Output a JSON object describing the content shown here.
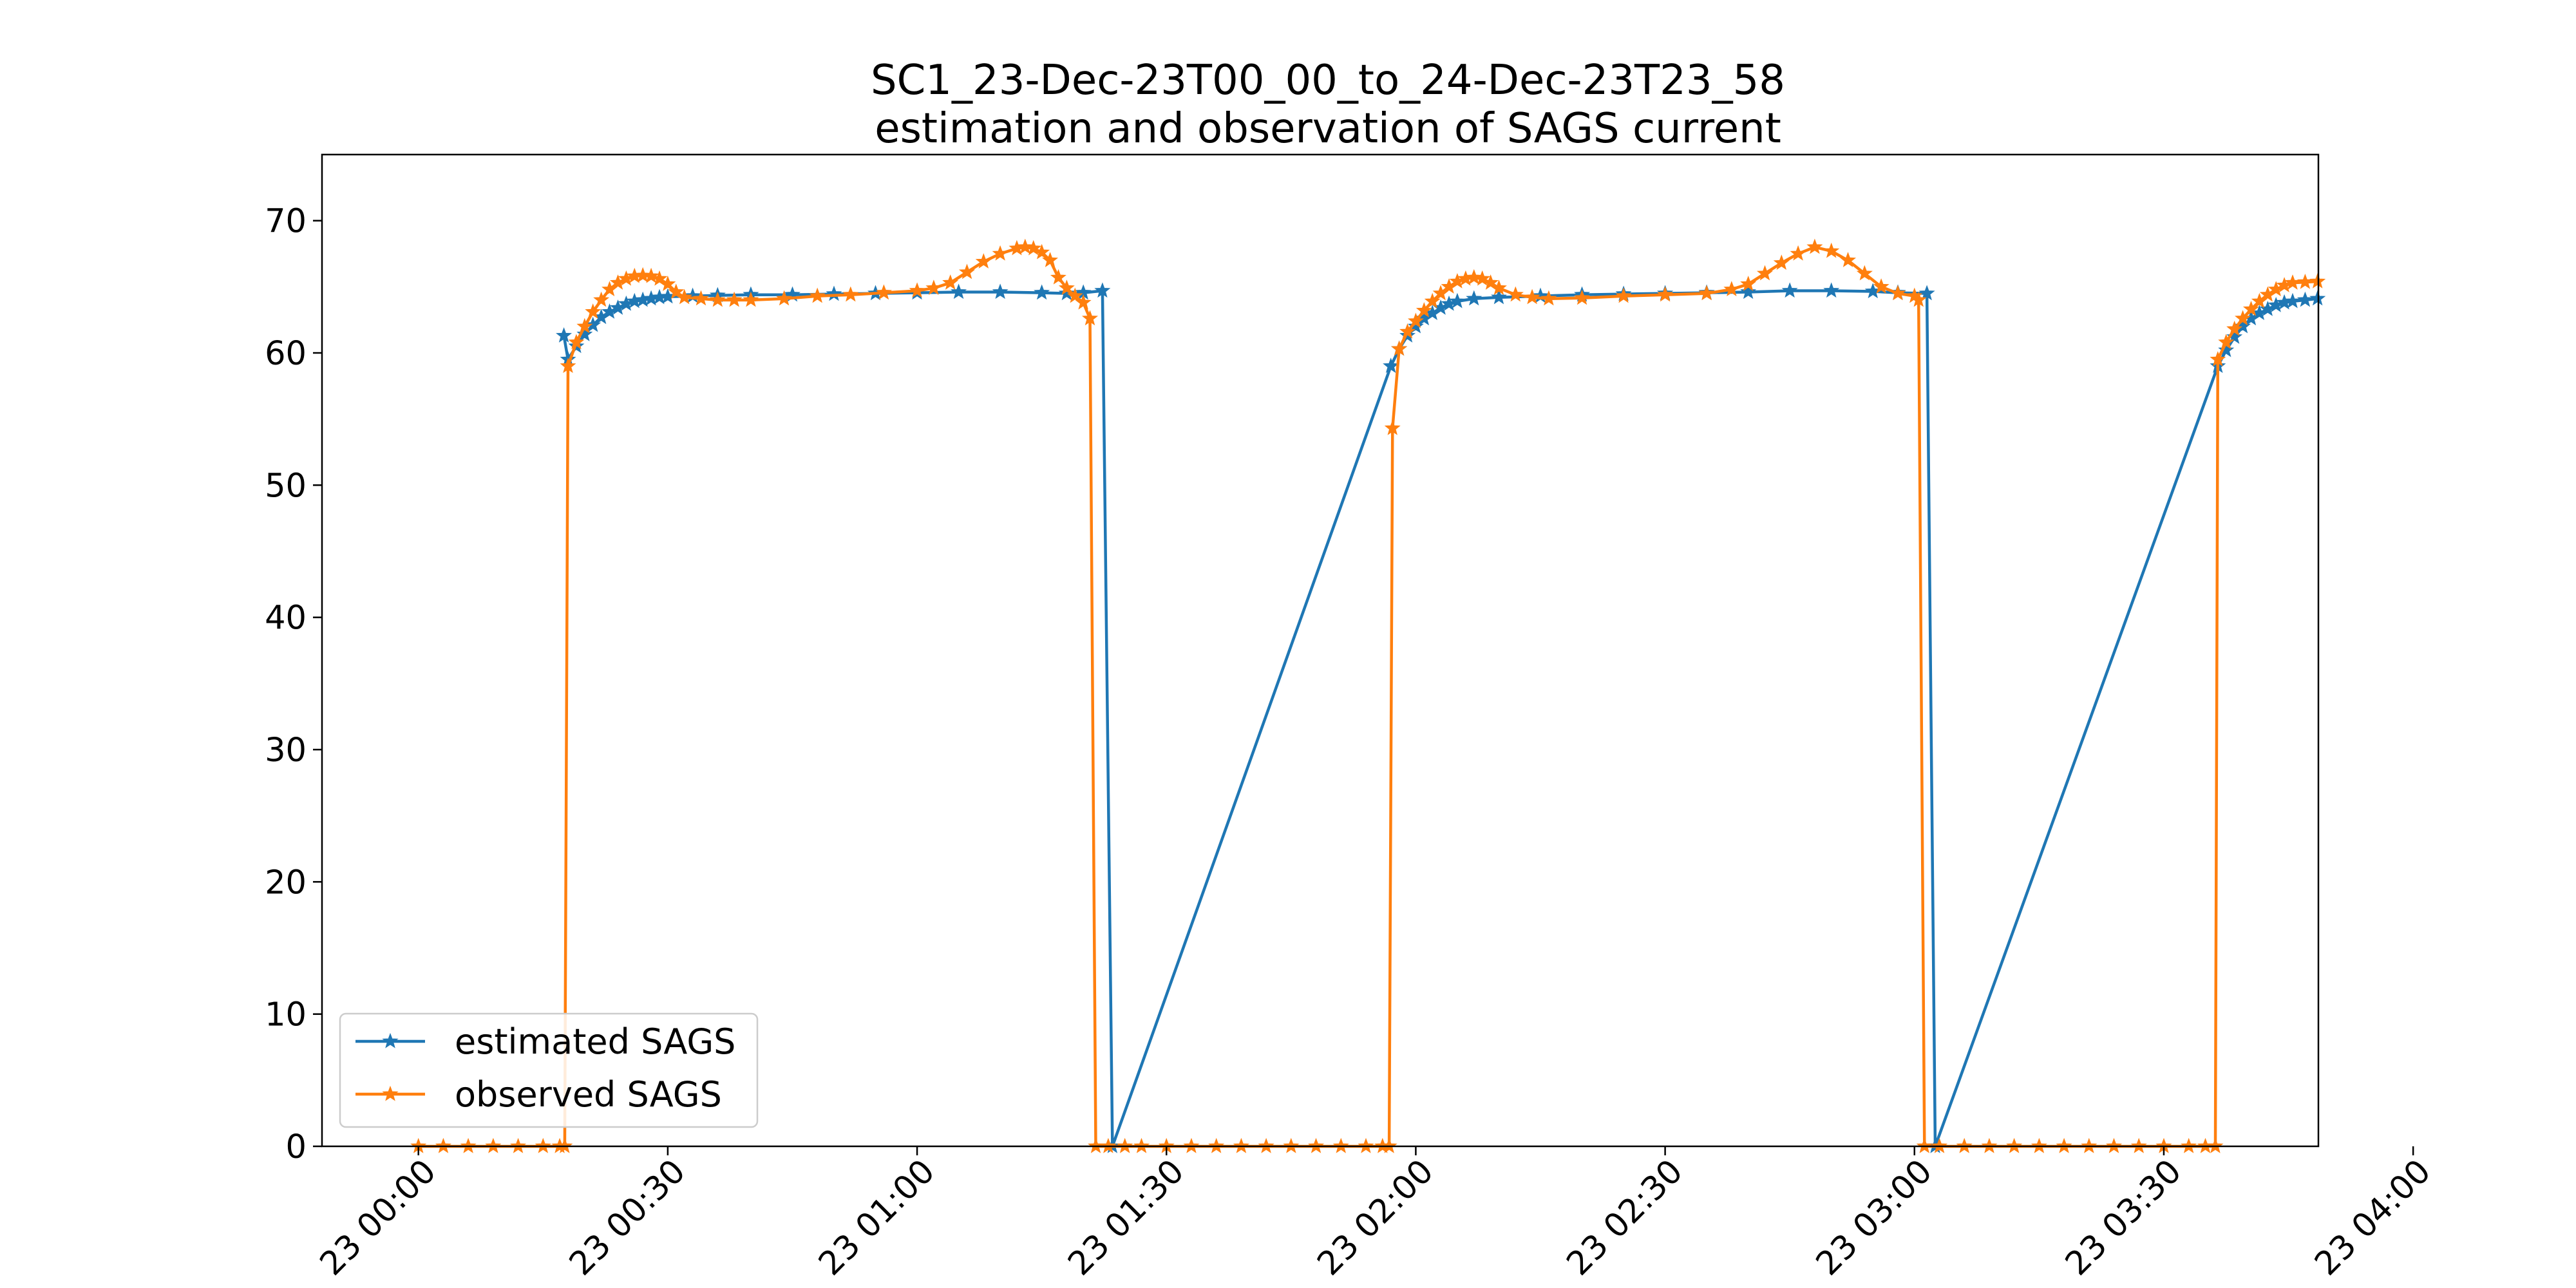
{
  "chart_data": {
    "type": "line",
    "title": "SC1_23-Dec-23T00_00_to_24-Dec-23T23_58",
    "subtitle": "estimation and observation of SAGS current",
    "xlabel": "",
    "ylabel": "",
    "x_unit": "minutes after 23 00:00",
    "xlim": [
      -11.6,
      228.6
    ],
    "ylim": [
      0,
      75
    ],
    "x_ticks": [
      {
        "value": 0,
        "label": "23 00:00"
      },
      {
        "value": 30,
        "label": "23 00:30"
      },
      {
        "value": 60,
        "label": "23 01:00"
      },
      {
        "value": 90,
        "label": "23 01:30"
      },
      {
        "value": 120,
        "label": "23 02:00"
      },
      {
        "value": 150,
        "label": "23 02:30"
      },
      {
        "value": 180,
        "label": "23 03:00"
      },
      {
        "value": 210,
        "label": "23 03:30"
      },
      {
        "value": 240,
        "label": "23 04:00"
      }
    ],
    "y_ticks": [
      0,
      10,
      20,
      30,
      40,
      50,
      60,
      70
    ],
    "grid": false,
    "legend_position": "lower-left",
    "series": [
      {
        "name": "estimated SAGS",
        "color": "#1f77b4",
        "marker": "star",
        "points": [
          [
            17.5,
            61.3
          ],
          [
            18,
            59.5
          ],
          [
            19,
            60.5
          ],
          [
            20,
            61.4
          ],
          [
            21,
            62.1
          ],
          [
            22,
            62.7
          ],
          [
            23,
            63.1
          ],
          [
            24,
            63.4
          ],
          [
            25,
            63.7
          ],
          [
            26,
            63.9
          ],
          [
            27,
            64.0
          ],
          [
            28,
            64.1
          ],
          [
            29,
            64.2
          ],
          [
            30,
            64.25
          ],
          [
            33,
            64.3
          ],
          [
            36,
            64.35
          ],
          [
            40,
            64.4
          ],
          [
            45,
            64.4
          ],
          [
            50,
            64.45
          ],
          [
            55,
            64.5
          ],
          [
            60,
            64.55
          ],
          [
            65,
            64.6
          ],
          [
            70,
            64.6
          ],
          [
            75,
            64.55
          ],
          [
            78,
            64.5
          ],
          [
            80,
            64.55
          ],
          [
            82.3,
            64.7
          ],
          [
            83.5,
            0
          ],
          [
            117,
            59.0
          ],
          [
            118,
            60.3
          ],
          [
            119,
            61.3
          ],
          [
            120,
            62.0
          ],
          [
            121,
            62.6
          ],
          [
            122,
            63.0
          ],
          [
            123,
            63.4
          ],
          [
            124,
            63.7
          ],
          [
            125,
            63.9
          ],
          [
            127,
            64.1
          ],
          [
            130,
            64.2
          ],
          [
            135,
            64.3
          ],
          [
            140,
            64.4
          ],
          [
            145,
            64.45
          ],
          [
            150,
            64.5
          ],
          [
            155,
            64.55
          ],
          [
            160,
            64.6
          ],
          [
            165,
            64.7
          ],
          [
            170,
            64.7
          ],
          [
            175,
            64.65
          ],
          [
            178,
            64.55
          ],
          [
            181.5,
            64.5
          ],
          [
            182.5,
            0
          ],
          [
            216.5,
            59.0
          ],
          [
            217.5,
            60.2
          ],
          [
            218.5,
            61.2
          ],
          [
            219.5,
            62.0
          ],
          [
            220.5,
            62.6
          ],
          [
            221.5,
            63.0
          ],
          [
            222.5,
            63.3
          ],
          [
            223.5,
            63.6
          ],
          [
            224.5,
            63.8
          ],
          [
            225.5,
            63.9
          ],
          [
            227,
            64.0
          ],
          [
            228.5,
            64.1
          ]
        ]
      },
      {
        "name": "observed SAGS",
        "color": "#ff7f0e",
        "marker": "star",
        "points": [
          [
            0,
            0
          ],
          [
            3,
            0
          ],
          [
            6,
            0
          ],
          [
            9,
            0
          ],
          [
            12,
            0
          ],
          [
            15,
            0
          ],
          [
            17,
            0
          ],
          [
            17.6,
            0
          ],
          [
            18,
            59.0
          ],
          [
            19,
            60.8
          ],
          [
            20,
            62.0
          ],
          [
            21,
            63.1
          ],
          [
            22,
            64.0
          ],
          [
            23,
            64.8
          ],
          [
            24,
            65.3
          ],
          [
            25,
            65.6
          ],
          [
            26,
            65.8
          ],
          [
            27,
            65.85
          ],
          [
            28,
            65.8
          ],
          [
            29,
            65.6
          ],
          [
            30,
            65.2
          ],
          [
            31,
            64.6
          ],
          [
            32,
            64.2
          ],
          [
            34,
            64.1
          ],
          [
            36,
            64.0
          ],
          [
            38,
            64.0
          ],
          [
            40,
            64.0
          ],
          [
            44,
            64.1
          ],
          [
            48,
            64.3
          ],
          [
            52,
            64.4
          ],
          [
            56,
            64.55
          ],
          [
            60,
            64.7
          ],
          [
            62,
            64.9
          ],
          [
            64,
            65.3
          ],
          [
            66,
            66.1
          ],
          [
            68,
            66.9
          ],
          [
            70,
            67.5
          ],
          [
            72,
            67.9
          ],
          [
            73,
            68.0
          ],
          [
            74,
            67.9
          ],
          [
            75,
            67.6
          ],
          [
            76,
            67.0
          ],
          [
            77,
            65.7
          ],
          [
            78,
            64.9
          ],
          [
            79,
            64.3
          ],
          [
            80,
            63.8
          ],
          [
            80.8,
            62.6
          ],
          [
            81.5,
            0
          ],
          [
            83,
            0
          ],
          [
            85,
            0
          ],
          [
            87,
            0
          ],
          [
            90,
            0
          ],
          [
            93,
            0
          ],
          [
            96,
            0
          ],
          [
            99,
            0
          ],
          [
            102,
            0
          ],
          [
            105,
            0
          ],
          [
            108,
            0
          ],
          [
            111,
            0
          ],
          [
            114,
            0
          ],
          [
            116,
            0
          ],
          [
            116.8,
            0
          ],
          [
            117.2,
            54.3
          ],
          [
            118,
            60.3
          ],
          [
            119,
            61.6
          ],
          [
            120,
            62.4
          ],
          [
            121,
            63.2
          ],
          [
            122,
            63.9
          ],
          [
            123,
            64.5
          ],
          [
            124,
            65.0
          ],
          [
            125,
            65.4
          ],
          [
            126,
            65.6
          ],
          [
            127,
            65.7
          ],
          [
            128,
            65.6
          ],
          [
            129,
            65.3
          ],
          [
            130,
            64.9
          ],
          [
            132,
            64.4
          ],
          [
            134,
            64.2
          ],
          [
            136,
            64.1
          ],
          [
            140,
            64.15
          ],
          [
            145,
            64.3
          ],
          [
            150,
            64.4
          ],
          [
            155,
            64.5
          ],
          [
            158,
            64.8
          ],
          [
            160,
            65.2
          ],
          [
            162,
            66.0
          ],
          [
            164,
            66.8
          ],
          [
            166,
            67.5
          ],
          [
            168,
            68.0
          ],
          [
            170,
            67.7
          ],
          [
            172,
            67.0
          ],
          [
            174,
            66.0
          ],
          [
            176,
            65.0
          ],
          [
            178,
            64.5
          ],
          [
            180,
            64.3
          ],
          [
            180.5,
            64.0
          ],
          [
            181.2,
            0
          ],
          [
            183,
            0
          ],
          [
            186,
            0
          ],
          [
            189,
            0
          ],
          [
            192,
            0
          ],
          [
            195,
            0
          ],
          [
            198,
            0
          ],
          [
            201,
            0
          ],
          [
            204,
            0
          ],
          [
            207,
            0
          ],
          [
            210,
            0
          ],
          [
            213,
            0
          ],
          [
            215,
            0
          ],
          [
            216.2,
            0
          ],
          [
            216.5,
            59.5
          ],
          [
            217.5,
            60.8
          ],
          [
            218.5,
            61.8
          ],
          [
            219.5,
            62.6
          ],
          [
            220.5,
            63.3
          ],
          [
            221.5,
            63.9
          ],
          [
            222.5,
            64.4
          ],
          [
            223.5,
            64.8
          ],
          [
            224.5,
            65.1
          ],
          [
            225.5,
            65.3
          ],
          [
            227,
            65.35
          ],
          [
            228.5,
            65.4
          ]
        ]
      }
    ]
  }
}
